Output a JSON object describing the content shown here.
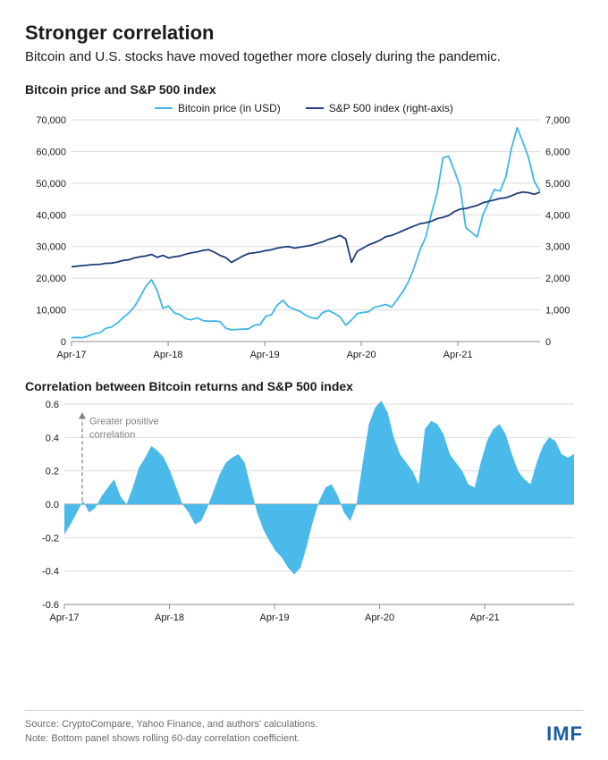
{
  "header": {
    "title": "Stronger correlation",
    "subtitle": "Bitcoin and U.S. stocks have moved together more closely during the pandemic."
  },
  "panel1": {
    "title": "Bitcoin price and S&P 500 index",
    "legend": {
      "series1": "Bitcoin price (in USD)",
      "series2": "S&P 500 index (right-axis)"
    },
    "x_ticks": [
      "Apr-17",
      "Apr-18",
      "Apr-19",
      "Apr-20",
      "Apr-21"
    ],
    "left_axis": {
      "min": 0,
      "max": 70000,
      "step": 10000
    },
    "right_axis": {
      "min": 0,
      "max": 7000,
      "step": 1000
    },
    "colors": {
      "bitcoin": "#3fb6e8",
      "sp500": "#1f3d7a",
      "grid": "#d9d9d9",
      "axis": "#888888"
    },
    "line_width": 1.8,
    "bitcoin_series": [
      1200,
      1300,
      1250,
      1800,
      2500,
      2800,
      4200,
      4600,
      5800,
      7500,
      9000,
      11000,
      14000,
      17500,
      19500,
      16000,
      10500,
      11200,
      9000,
      8500,
      7200,
      6900,
      7500,
      6600,
      6400,
      6500,
      6300,
      4200,
      3700,
      3800,
      3900,
      4000,
      5200,
      5400,
      8000,
      8500,
      11500,
      13000,
      11000,
      10200,
      9500,
      8300,
      7500,
      7200,
      9200,
      9800,
      8900,
      7800,
      5200,
      6800,
      8800,
      9200,
      9400,
      10800,
      11200,
      11700,
      10900,
      13200,
      15800,
      19000,
      23500,
      29000,
      33000,
      40500,
      47000,
      58000,
      58500,
      54000,
      49000,
      36000,
      34500,
      33000,
      40000,
      44000,
      48000,
      47500,
      52000,
      61000,
      67500,
      63000,
      58000,
      50500,
      47500
    ],
    "sp500_series": [
      2360,
      2380,
      2400,
      2415,
      2430,
      2440,
      2470,
      2475,
      2510,
      2560,
      2580,
      2640,
      2680,
      2700,
      2750,
      2660,
      2720,
      2640,
      2680,
      2700,
      2760,
      2800,
      2830,
      2880,
      2900,
      2820,
      2720,
      2650,
      2500,
      2600,
      2700,
      2780,
      2800,
      2830,
      2870,
      2900,
      2950,
      2980,
      3000,
      2950,
      2980,
      3010,
      3040,
      3100,
      3150,
      3230,
      3280,
      3350,
      3240,
      2500,
      2850,
      2950,
      3050,
      3120,
      3200,
      3310,
      3350,
      3420,
      3500,
      3580,
      3650,
      3720,
      3750,
      3800,
      3880,
      3920,
      3980,
      4100,
      4180,
      4200,
      4250,
      4300,
      4380,
      4430,
      4470,
      4520,
      4540,
      4600,
      4680,
      4720,
      4700,
      4650,
      4720
    ]
  },
  "panel2": {
    "title": "Correlation between Bitcoin returns and S&P 500 index",
    "annotation": "Greater positive correlation",
    "x_ticks": [
      "Apr-17",
      "Apr-18",
      "Apr-19",
      "Apr-20",
      "Apr-21"
    ],
    "y_axis": {
      "min": -0.6,
      "max": 0.6,
      "step": 0.2
    },
    "colors": {
      "fill": "#3fb6e8",
      "grid": "#d9d9d9",
      "axis": "#888888",
      "arrow": "#808080"
    },
    "series": [
      -0.18,
      -0.12,
      -0.05,
      0.02,
      -0.05,
      -0.02,
      0.05,
      0.1,
      0.15,
      0.05,
      0.0,
      0.1,
      0.22,
      0.28,
      0.35,
      0.32,
      0.28,
      0.2,
      0.1,
      0.0,
      -0.05,
      -0.12,
      -0.1,
      -0.02,
      0.08,
      0.18,
      0.25,
      0.28,
      0.3,
      0.25,
      0.1,
      -0.05,
      -0.15,
      -0.22,
      -0.28,
      -0.32,
      -0.38,
      -0.42,
      -0.38,
      -0.25,
      -0.1,
      0.02,
      0.1,
      0.12,
      0.05,
      -0.05,
      -0.1,
      0.0,
      0.25,
      0.48,
      0.58,
      0.62,
      0.55,
      0.4,
      0.3,
      0.25,
      0.2,
      0.12,
      0.45,
      0.5,
      0.48,
      0.42,
      0.3,
      0.25,
      0.2,
      0.12,
      0.1,
      0.25,
      0.38,
      0.45,
      0.48,
      0.42,
      0.3,
      0.2,
      0.15,
      0.12,
      0.25,
      0.35,
      0.4,
      0.38,
      0.3,
      0.28,
      0.3
    ]
  },
  "footer": {
    "source": "Source: CryptoCompare, Yahoo Finance, and authors' calculations.",
    "note": "Note: Bottom panel shows rolling 60-day correlation coefficient.",
    "logo": "IMF"
  }
}
